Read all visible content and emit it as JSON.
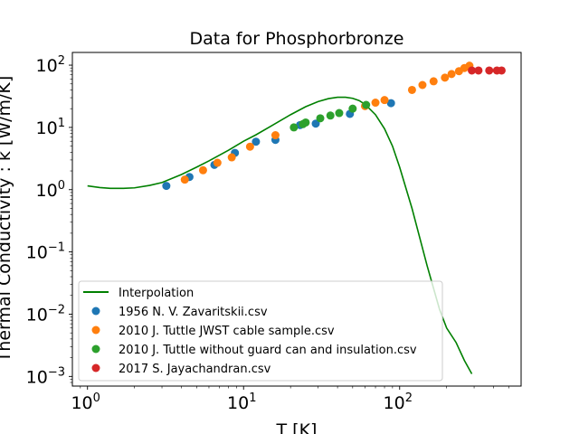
{
  "chart_data": {
    "type": "scatter",
    "title": "Data for Phosphorbronze",
    "xlabel": "T [K]",
    "ylabel": "Thermal Conductivity : k [W/m/K]",
    "xscale": "log",
    "yscale": "log",
    "xlim": [
      0.8,
      600
    ],
    "ylim": [
      0.0007,
      160
    ],
    "x_ticks": [
      {
        "base": "10",
        "exp": "0",
        "value": 1
      },
      {
        "base": "10",
        "exp": "1",
        "value": 10
      },
      {
        "base": "10",
        "exp": "2",
        "value": 100
      }
    ],
    "y_ticks": [
      {
        "base": "10",
        "exp": "−3",
        "value": 0.001
      },
      {
        "base": "10",
        "exp": "−2",
        "value": 0.01
      },
      {
        "base": "10",
        "exp": "−1",
        "value": 0.1
      },
      {
        "base": "10",
        "exp": "0",
        "value": 1
      },
      {
        "base": "10",
        "exp": "1",
        "value": 10
      },
      {
        "base": "10",
        "exp": "2",
        "value": 100
      }
    ],
    "grid": false,
    "legend_position": "lower-left",
    "line": {
      "name": "Interpolation",
      "color": "#008000",
      "x": [
        1.0,
        1.2,
        1.4,
        1.7,
        2.0,
        2.5,
        3.0,
        4.0,
        5.0,
        6.0,
        8.0,
        10.0,
        12.0,
        15.0,
        20.0,
        25.0,
        30.0,
        35.0,
        40.0,
        45.0,
        50.0,
        55.0,
        60.0,
        70.0,
        80.0,
        90.0,
        100.0,
        120.0,
        150.0,
        180.0,
        200.0,
        230.0,
        260.0,
        290.0
      ],
      "y": [
        1.15,
        1.08,
        1.05,
        1.05,
        1.07,
        1.17,
        1.3,
        1.75,
        2.3,
        2.9,
        4.3,
        6.0,
        7.6,
        10.5,
        16.0,
        21.5,
        26.0,
        29.0,
        30.5,
        30.5,
        29.3,
        27.0,
        23.5,
        16.0,
        9.5,
        5.0,
        2.3,
        0.5,
        0.06,
        0.012,
        0.006,
        0.0035,
        0.0018,
        0.0011
      ]
    },
    "series": [
      {
        "name": "1956 N. V. Zavaritskii.csv",
        "color": "#1f77b4",
        "x": [
          3.2,
          4.5,
          6.5,
          8.8,
          12.0,
          16.0,
          23.0,
          29.0,
          48.0,
          88.0
        ],
        "y": [
          1.15,
          1.6,
          2.5,
          3.9,
          5.9,
          6.3,
          10.9,
          11.5,
          16.5,
          24.5
        ]
      },
      {
        "name": "2010 J. Tuttle JWST cable sample.csv",
        "color": "#ff7f0e",
        "x": [
          4.2,
          5.5,
          6.8,
          8.4,
          11.0,
          16.0,
          60.0,
          70.0,
          80.0,
          120.0,
          140.0,
          165.0,
          195.0,
          215.0,
          240.0,
          260.0,
          280.0
        ],
        "y": [
          1.45,
          2.05,
          2.7,
          3.3,
          4.9,
          7.5,
          22.0,
          25.0,
          27.5,
          40.0,
          48.0,
          55.0,
          63.0,
          72.0,
          80.0,
          90.0,
          98.0
        ]
      },
      {
        "name": "2010 J. Tuttle without guard can and insulation.csv",
        "color": "#2ca02c",
        "x": [
          21.0,
          24.0,
          25.0,
          31.0,
          36.0,
          41.0,
          50.0,
          61.0
        ],
        "y": [
          10.0,
          11.3,
          12.0,
          14.0,
          15.5,
          17.0,
          20.0,
          23.0
        ]
      },
      {
        "name": "2017 S. Jayachandran.csv",
        "color": "#d62728",
        "x": [
          290.0,
          320.0,
          375.0,
          420.0,
          450.0
        ],
        "y": [
          82.0,
          82.0,
          82.0,
          82.0,
          82.0
        ]
      }
    ]
  }
}
